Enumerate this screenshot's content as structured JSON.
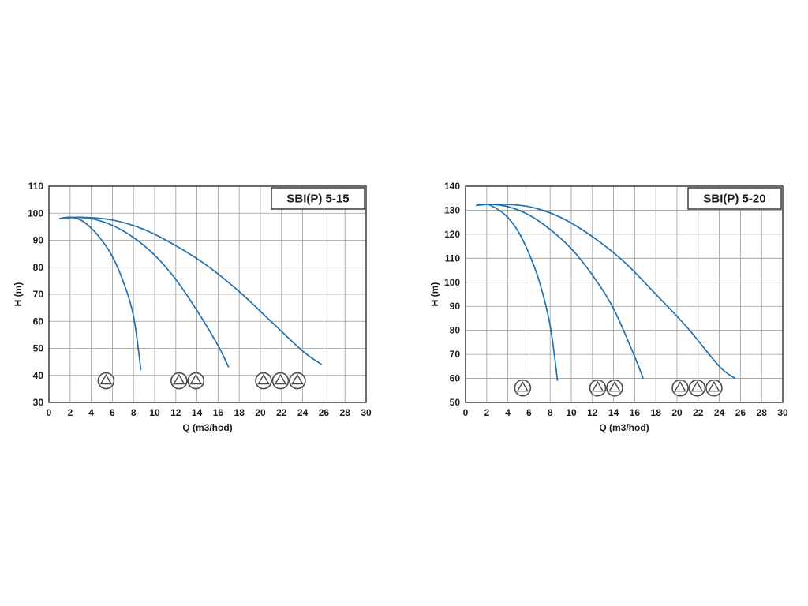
{
  "page": {
    "background": "#ffffff"
  },
  "colors": {
    "curve": "#2170b0",
    "grid": "#9c9c9c",
    "axis": "#3a3a3a",
    "text": "#1a1a1a",
    "icon_stroke": "#4a4a4a",
    "title_border": "#2b2b2b",
    "plot_background": "#ffffff"
  },
  "chart_data": [
    {
      "type": "line",
      "title": "SBI(P) 5-15",
      "xlabel": "Q (m3/hod)",
      "ylabel": "H (m)",
      "xlim": [
        0,
        30
      ],
      "ylim": [
        30,
        110
      ],
      "xtick_step": 2,
      "ytick_step": 10,
      "grid": true,
      "legend": "none",
      "series": [
        {
          "name": "1 pump",
          "points": [
            [
              1,
              98
            ],
            [
              2,
              98.5
            ],
            [
              3,
              97.5
            ],
            [
              4,
              94.5
            ],
            [
              5,
              90
            ],
            [
              6,
              84
            ],
            [
              7,
              75
            ],
            [
              8,
              62
            ],
            [
              8.7,
              42
            ]
          ]
        },
        {
          "name": "2 pumps",
          "points": [
            [
              1,
              98
            ],
            [
              2,
              98.5
            ],
            [
              4,
              98
            ],
            [
              6,
              95.5
            ],
            [
              8,
              91
            ],
            [
              10,
              84.5
            ],
            [
              12,
              75.5
            ],
            [
              14,
              64
            ],
            [
              16,
              51
            ],
            [
              17,
              43
            ]
          ]
        },
        {
          "name": "3 pumps",
          "points": [
            [
              1,
              98
            ],
            [
              3,
              98.5
            ],
            [
              6,
              97.5
            ],
            [
              9,
              94
            ],
            [
              12,
              88
            ],
            [
              15,
              80.5
            ],
            [
              18,
              71
            ],
            [
              21,
              60
            ],
            [
              24,
              49
            ],
            [
              25.8,
              44
            ]
          ]
        }
      ],
      "pump_markers": [
        {
          "h": 38,
          "q_positions": [
            5.4
          ]
        },
        {
          "h": 38,
          "q_positions": [
            12.3,
            13.9
          ]
        },
        {
          "h": 38,
          "q_positions": [
            20.3,
            21.9,
            23.5
          ]
        }
      ]
    },
    {
      "type": "line",
      "title": "SBI(P) 5-20",
      "xlabel": "Q (m3/hod)",
      "ylabel": "H (m)",
      "xlim": [
        0,
        30
      ],
      "ylim": [
        50,
        140
      ],
      "xtick_step": 2,
      "ytick_step": 10,
      "grid": true,
      "legend": "none",
      "series": [
        {
          "name": "1 pump",
          "points": [
            [
              1,
              132
            ],
            [
              2,
              132.5
            ],
            [
              3,
              130.5
            ],
            [
              4,
              127
            ],
            [
              5,
              121
            ],
            [
              6,
              112
            ],
            [
              7,
              100
            ],
            [
              8,
              82
            ],
            [
              8.7,
              59
            ]
          ]
        },
        {
          "name": "2 pumps",
          "points": [
            [
              1,
              132
            ],
            [
              2,
              132.5
            ],
            [
              4,
              131.5
            ],
            [
              6,
              128
            ],
            [
              8,
              122
            ],
            [
              10,
              114
            ],
            [
              12,
              103
            ],
            [
              14,
              89
            ],
            [
              16,
              69
            ],
            [
              16.8,
              60
            ]
          ]
        },
        {
          "name": "3 pumps",
          "points": [
            [
              1,
              132
            ],
            [
              3,
              132.5
            ],
            [
              6,
              131.5
            ],
            [
              9,
              127
            ],
            [
              12,
              119
            ],
            [
              15,
              108.5
            ],
            [
              18,
              95
            ],
            [
              21,
              81
            ],
            [
              24,
              65
            ],
            [
              25.5,
              60
            ]
          ]
        }
      ],
      "pump_markers": [
        {
          "h": 56,
          "q_positions": [
            5.4
          ]
        },
        {
          "h": 56,
          "q_positions": [
            12.5,
            14.1
          ]
        },
        {
          "h": 56,
          "q_positions": [
            20.3,
            21.9,
            23.5
          ]
        }
      ]
    }
  ]
}
